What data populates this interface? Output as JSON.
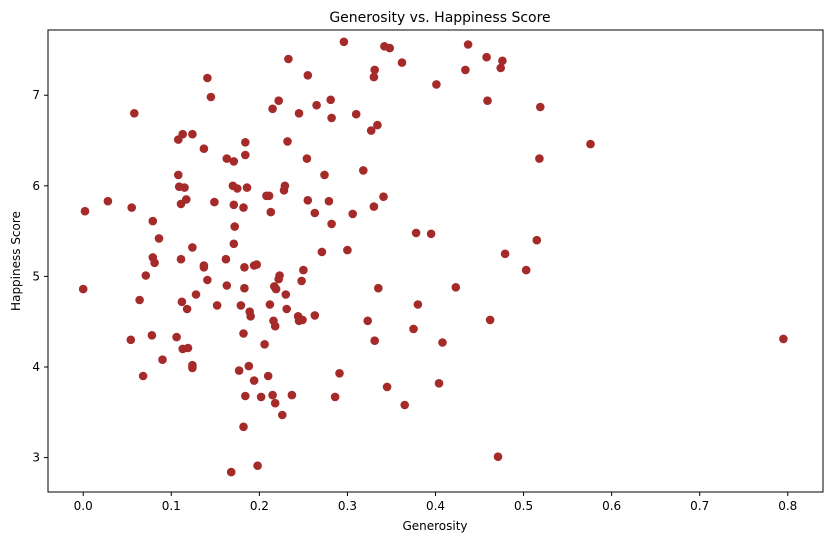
{
  "chart_data": {
    "type": "scatter",
    "title": "Generosity vs. Happiness Score",
    "xlabel": "Generosity",
    "ylabel": "Happiness Score",
    "xlim": [
      -0.04,
      0.84
    ],
    "ylim": [
      2.62,
      7.72
    ],
    "xticks": [
      0.0,
      0.1,
      0.2,
      0.3,
      0.4,
      0.5,
      0.6,
      0.7,
      0.8
    ],
    "xtick_labels": [
      "0.0",
      "0.1",
      "0.2",
      "0.3",
      "0.4",
      "0.5",
      "0.6",
      "0.7",
      "0.8"
    ],
    "yticks": [
      3,
      4,
      5,
      6,
      7
    ],
    "ytick_labels": [
      "3",
      "4",
      "5",
      "6",
      "7"
    ],
    "grid": false,
    "marker_color": "#a52a2a",
    "points": [
      [
        0.296,
        7.59
      ],
      [
        0.342,
        7.54
      ],
      [
        0.348,
        7.52
      ],
      [
        0.437,
        7.56
      ],
      [
        0.233,
        7.4
      ],
      [
        0.362,
        7.36
      ],
      [
        0.458,
        7.42
      ],
      [
        0.476,
        7.38
      ],
      [
        0.474,
        7.3
      ],
      [
        0.434,
        7.28
      ],
      [
        0.331,
        7.28
      ],
      [
        0.255,
        7.22
      ],
      [
        0.33,
        7.2
      ],
      [
        0.141,
        7.19
      ],
      [
        0.401,
        7.12
      ],
      [
        0.145,
        6.98
      ],
      [
        0.222,
        6.94
      ],
      [
        0.281,
        6.95
      ],
      [
        0.459,
        6.94
      ],
      [
        0.265,
        6.89
      ],
      [
        0.519,
        6.87
      ],
      [
        0.215,
        6.85
      ],
      [
        0.058,
        6.8
      ],
      [
        0.245,
        6.8
      ],
      [
        0.31,
        6.79
      ],
      [
        0.282,
        6.75
      ],
      [
        0.334,
        6.67
      ],
      [
        0.327,
        6.61
      ],
      [
        0.113,
        6.57
      ],
      [
        0.124,
        6.57
      ],
      [
        0.108,
        6.51
      ],
      [
        0.232,
        6.49
      ],
      [
        0.184,
        6.48
      ],
      [
        0.576,
        6.46
      ],
      [
        0.137,
        6.41
      ],
      [
        0.184,
        6.34
      ],
      [
        0.163,
        6.3
      ],
      [
        0.254,
        6.3
      ],
      [
        0.518,
        6.3
      ],
      [
        0.171,
        6.27
      ],
      [
        0.318,
        6.17
      ],
      [
        0.108,
        6.12
      ],
      [
        0.274,
        6.12
      ],
      [
        0.229,
        6.0
      ],
      [
        0.115,
        5.98
      ],
      [
        0.109,
        5.99
      ],
      [
        0.17,
        6.0
      ],
      [
        0.175,
        5.97
      ],
      [
        0.186,
        5.98
      ],
      [
        0.028,
        5.83
      ],
      [
        0.149,
        5.82
      ],
      [
        0.117,
        5.85
      ],
      [
        0.171,
        5.79
      ],
      [
        0.228,
        5.95
      ],
      [
        0.208,
        5.89
      ],
      [
        0.211,
        5.89
      ],
      [
        0.255,
        5.84
      ],
      [
        0.279,
        5.83
      ],
      [
        0.341,
        5.88
      ],
      [
        0.002,
        5.72
      ],
      [
        0.055,
        5.76
      ],
      [
        0.111,
        5.8
      ],
      [
        0.182,
        5.76
      ],
      [
        0.213,
        5.71
      ],
      [
        0.263,
        5.7
      ],
      [
        0.306,
        5.69
      ],
      [
        0.33,
        5.77
      ],
      [
        0.079,
        5.61
      ],
      [
        0.172,
        5.55
      ],
      [
        0.282,
        5.58
      ],
      [
        0.378,
        5.48
      ],
      [
        0.395,
        5.47
      ],
      [
        0.086,
        5.42
      ],
      [
        0.171,
        5.36
      ],
      [
        0.124,
        5.32
      ],
      [
        0.515,
        5.4
      ],
      [
        0.271,
        5.27
      ],
      [
        0.3,
        5.29
      ],
      [
        0.079,
        5.21
      ],
      [
        0.081,
        5.15
      ],
      [
        0.111,
        5.19
      ],
      [
        0.162,
        5.19
      ],
      [
        0.183,
        5.1
      ],
      [
        0.194,
        5.12
      ],
      [
        0.197,
        5.13
      ],
      [
        0.479,
        5.25
      ],
      [
        0.137,
        5.12
      ],
      [
        0.137,
        5.1
      ],
      [
        0.25,
        5.07
      ],
      [
        0.503,
        5.07
      ],
      [
        0.071,
        5.01
      ],
      [
        0.223,
        5.01
      ],
      [
        0.222,
        4.97
      ],
      [
        0.0,
        4.86
      ],
      [
        0.141,
        4.96
      ],
      [
        0.248,
        4.95
      ],
      [
        0.163,
        4.9
      ],
      [
        0.183,
        4.87
      ],
      [
        0.217,
        4.89
      ],
      [
        0.219,
        4.86
      ],
      [
        0.335,
        4.87
      ],
      [
        0.423,
        4.88
      ],
      [
        0.128,
        4.8
      ],
      [
        0.23,
        4.8
      ],
      [
        0.064,
        4.74
      ],
      [
        0.112,
        4.72
      ],
      [
        0.212,
        4.69
      ],
      [
        0.152,
        4.68
      ],
      [
        0.179,
        4.68
      ],
      [
        0.38,
        4.69
      ],
      [
        0.118,
        4.64
      ],
      [
        0.231,
        4.64
      ],
      [
        0.189,
        4.61
      ],
      [
        0.19,
        4.56
      ],
      [
        0.263,
        4.57
      ],
      [
        0.244,
        4.56
      ],
      [
        0.245,
        4.51
      ],
      [
        0.216,
        4.51
      ],
      [
        0.249,
        4.52
      ],
      [
        0.323,
        4.51
      ],
      [
        0.462,
        4.52
      ],
      [
        0.218,
        4.45
      ],
      [
        0.375,
        4.42
      ],
      [
        0.182,
        4.37
      ],
      [
        0.078,
        4.35
      ],
      [
        0.106,
        4.33
      ],
      [
        0.054,
        4.3
      ],
      [
        0.331,
        4.29
      ],
      [
        0.408,
        4.27
      ],
      [
        0.795,
        4.31
      ],
      [
        0.206,
        4.25
      ],
      [
        0.113,
        4.2
      ],
      [
        0.119,
        4.21
      ],
      [
        0.09,
        4.08
      ],
      [
        0.124,
        4.02
      ],
      [
        0.124,
        3.99
      ],
      [
        0.188,
        4.01
      ],
      [
        0.177,
        3.96
      ],
      [
        0.068,
        3.9
      ],
      [
        0.21,
        3.9
      ],
      [
        0.194,
        3.85
      ],
      [
        0.404,
        3.82
      ],
      [
        0.291,
        3.93
      ],
      [
        0.345,
        3.78
      ],
      [
        0.202,
        3.67
      ],
      [
        0.184,
        3.68
      ],
      [
        0.215,
        3.69
      ],
      [
        0.237,
        3.69
      ],
      [
        0.286,
        3.67
      ],
      [
        0.218,
        3.6
      ],
      [
        0.365,
        3.58
      ],
      [
        0.226,
        3.47
      ],
      [
        0.182,
        3.34
      ],
      [
        0.471,
        3.01
      ],
      [
        0.198,
        2.91
      ],
      [
        0.168,
        2.84
      ]
    ]
  }
}
